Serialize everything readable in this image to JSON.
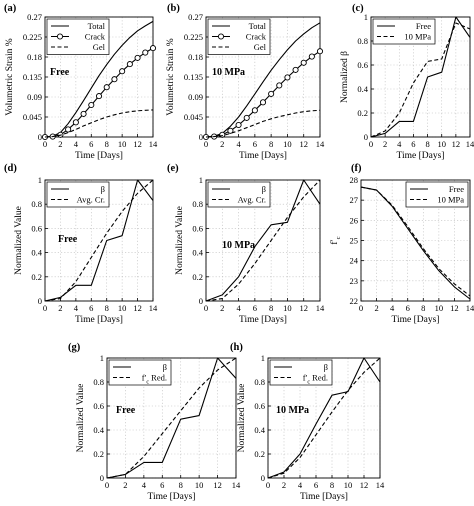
{
  "figure": {
    "background": "#ffffff",
    "line_color": "#000000"
  },
  "chart_data": [
    {
      "id": "a",
      "panel_label": "(a)",
      "type": "line",
      "annotation": "Free",
      "xlabel": "Time [Days]",
      "ylabel": "Volumetric Strain %",
      "xlim": [
        0,
        14
      ],
      "ylim": [
        0,
        0.27
      ],
      "xticks": [
        "0",
        "2",
        "4",
        "6",
        "8",
        "10",
        "12",
        "14"
      ],
      "yticks": [
        "0",
        "0.045",
        "0.09",
        "0.135",
        "0.18",
        "0.225",
        "0.27"
      ],
      "grid": true,
      "legend_position": "top-left",
      "series": [
        {
          "name": "Total",
          "style": "solid",
          "x": [
            0,
            1,
            2,
            3,
            4,
            5,
            6,
            7,
            8,
            9,
            10,
            11,
            12,
            13,
            14
          ],
          "y": [
            0,
            0.002,
            0.01,
            0.03,
            0.055,
            0.082,
            0.11,
            0.138,
            0.163,
            0.186,
            0.206,
            0.224,
            0.239,
            0.25,
            0.26
          ]
        },
        {
          "name": "Crack",
          "style": "solid-circles",
          "x": [
            0,
            1,
            2,
            3,
            4,
            5,
            6,
            7,
            8,
            9,
            10,
            11,
            12,
            13,
            14
          ],
          "y": [
            0,
            0.001,
            0.005,
            0.017,
            0.033,
            0.052,
            0.072,
            0.092,
            0.112,
            0.13,
            0.148,
            0.164,
            0.178,
            0.19,
            0.2
          ]
        },
        {
          "name": "Gel",
          "style": "dashed",
          "x": [
            0,
            1,
            2,
            3,
            4,
            5,
            6,
            7,
            8,
            9,
            10,
            11,
            12,
            13,
            14
          ],
          "y": [
            0,
            0.001,
            0.004,
            0.01,
            0.017,
            0.025,
            0.032,
            0.039,
            0.045,
            0.05,
            0.054,
            0.057,
            0.059,
            0.06,
            0.061
          ]
        }
      ]
    },
    {
      "id": "b",
      "panel_label": "(b)",
      "type": "line",
      "annotation": "10 MPa",
      "xlabel": "Time [Days]",
      "ylabel": "Volumetric Strain %",
      "xlim": [
        0,
        14
      ],
      "ylim": [
        0,
        0.27
      ],
      "xticks": [
        "0",
        "2",
        "4",
        "6",
        "8",
        "10",
        "12",
        "14"
      ],
      "yticks": [
        "0",
        "0.045",
        "0.09",
        "0.135",
        "0.18",
        "0.225",
        "0.27"
      ],
      "grid": true,
      "legend_position": "top-left",
      "series": [
        {
          "name": "Total",
          "style": "solid",
          "x": [
            0,
            1,
            2,
            3,
            4,
            5,
            6,
            7,
            8,
            9,
            10,
            11,
            12,
            13,
            14
          ],
          "y": [
            0,
            0.002,
            0.008,
            0.024,
            0.045,
            0.07,
            0.097,
            0.124,
            0.15,
            0.174,
            0.196,
            0.216,
            0.232,
            0.246,
            0.257
          ]
        },
        {
          "name": "Crack",
          "style": "solid-circles",
          "x": [
            0,
            1,
            2,
            3,
            4,
            5,
            6,
            7,
            8,
            9,
            10,
            11,
            12,
            13,
            14
          ],
          "y": [
            0,
            0.001,
            0.005,
            0.014,
            0.027,
            0.043,
            0.06,
            0.078,
            0.097,
            0.116,
            0.134,
            0.151,
            0.167,
            0.181,
            0.193
          ]
        },
        {
          "name": "Gel",
          "style": "dashed",
          "x": [
            0,
            1,
            2,
            3,
            4,
            5,
            6,
            7,
            8,
            9,
            10,
            11,
            12,
            13,
            14
          ],
          "y": [
            0,
            0.001,
            0.003,
            0.008,
            0.014,
            0.021,
            0.028,
            0.035,
            0.041,
            0.046,
            0.05,
            0.054,
            0.057,
            0.059,
            0.06
          ]
        }
      ]
    },
    {
      "id": "c",
      "panel_label": "(c)",
      "type": "line",
      "xlabel": "Time [Days]",
      "ylabel": "Normalized β",
      "xlim": [
        0,
        14
      ],
      "ylim": [
        0,
        1
      ],
      "xticks": [
        "0",
        "2",
        "4",
        "6",
        "8",
        "10",
        "12",
        "14"
      ],
      "yticks": [
        "0",
        "0.2",
        "0.4",
        "0.6",
        "0.8",
        "1"
      ],
      "grid": true,
      "legend_position": "top-left",
      "series": [
        {
          "name": "Free",
          "style": "solid",
          "x": [
            0,
            2,
            4,
            6,
            8,
            10,
            12,
            14
          ],
          "y": [
            0,
            0.03,
            0.13,
            0.13,
            0.5,
            0.54,
            1.0,
            0.83
          ]
        },
        {
          "name": "10 MPa",
          "style": "dashed",
          "x": [
            0,
            2,
            4,
            6,
            8,
            10,
            12,
            14
          ],
          "y": [
            0,
            0.05,
            0.2,
            0.45,
            0.63,
            0.65,
            0.95,
            0.9
          ]
        }
      ]
    },
    {
      "id": "d",
      "panel_label": "(d)",
      "type": "line",
      "annotation": "Free",
      "xlabel": "Time [Days]",
      "ylabel": "Normalized Value",
      "xlim": [
        0,
        14
      ],
      "ylim": [
        0,
        1
      ],
      "xticks": [
        "0",
        "2",
        "4",
        "6",
        "8",
        "10",
        "12",
        "14"
      ],
      "yticks": [
        "0",
        "0.2",
        "0.4",
        "0.6",
        "0.8",
        "1"
      ],
      "grid": true,
      "legend_position": "top-left",
      "series": [
        {
          "name": "β",
          "style": "solid",
          "x": [
            0,
            2,
            4,
            6,
            8,
            10,
            12,
            14
          ],
          "y": [
            0,
            0.03,
            0.13,
            0.13,
            0.5,
            0.54,
            1.0,
            0.83
          ]
        },
        {
          "name": "Avg. Cr.",
          "style": "dashed",
          "x": [
            0,
            2,
            4,
            6,
            8,
            10,
            12,
            14
          ],
          "y": [
            0,
            0.02,
            0.16,
            0.36,
            0.56,
            0.74,
            0.89,
            1.0
          ]
        }
      ]
    },
    {
      "id": "e",
      "panel_label": "(e)",
      "type": "line",
      "annotation": "10 MPa",
      "xlabel": "Time [Days]",
      "ylabel": "Normalized Value",
      "xlim": [
        0,
        14
      ],
      "ylim": [
        0,
        1
      ],
      "xticks": [
        "0",
        "2",
        "4",
        "6",
        "8",
        "10",
        "12",
        "14"
      ],
      "yticks": [
        "0",
        "0.2",
        "0.4",
        "0.6",
        "0.8",
        "1"
      ],
      "grid": true,
      "legend_position": "top-left",
      "series": [
        {
          "name": "β",
          "style": "solid",
          "x": [
            0,
            2,
            4,
            6,
            8,
            10,
            12,
            14
          ],
          "y": [
            0,
            0.05,
            0.2,
            0.45,
            0.63,
            0.65,
            1.0,
            0.8
          ]
        },
        {
          "name": "Avg. Cr.",
          "style": "dashed",
          "x": [
            0,
            2,
            4,
            6,
            8,
            10,
            12,
            14
          ],
          "y": [
            0,
            0.02,
            0.14,
            0.31,
            0.5,
            0.69,
            0.86,
            1.0
          ]
        }
      ]
    },
    {
      "id": "f",
      "panel_label": "(f)",
      "type": "line",
      "xlabel": "Time [Days]",
      "ylabel": "f'c",
      "xlim": [
        0,
        14
      ],
      "ylim": [
        22,
        28
      ],
      "xticks": [
        "0",
        "2",
        "4",
        "6",
        "8",
        "10",
        "12",
        "14"
      ],
      "yticks": [
        "22",
        "23",
        "24",
        "25",
        "26",
        "27",
        "28"
      ],
      "grid": true,
      "legend_position": "top-right",
      "series": [
        {
          "name": "Free",
          "style": "solid",
          "x": [
            0,
            2,
            4,
            6,
            8,
            10,
            12,
            14
          ],
          "y": [
            27.65,
            27.5,
            26.7,
            25.6,
            24.5,
            23.5,
            22.7,
            22.1
          ]
        },
        {
          "name": "10 MPa",
          "style": "dashed",
          "x": [
            0,
            2,
            4,
            6,
            8,
            10,
            12,
            14
          ],
          "y": [
            27.65,
            27.5,
            26.75,
            25.7,
            24.6,
            23.6,
            22.85,
            22.25
          ]
        }
      ]
    },
    {
      "id": "g",
      "panel_label": "(g)",
      "type": "line",
      "annotation": "Free",
      "xlabel": "Time [Days]",
      "ylabel": "Normalized Value",
      "xlim": [
        0,
        14
      ],
      "ylim": [
        0,
        1
      ],
      "xticks": [
        "0",
        "2",
        "4",
        "6",
        "8",
        "10",
        "12",
        "14"
      ],
      "yticks": [
        "0",
        "0.2",
        "0.4",
        "0.6",
        "0.8",
        "1"
      ],
      "grid": true,
      "legend_position": "top-left",
      "series": [
        {
          "name": "β",
          "style": "solid",
          "x": [
            0,
            2,
            4,
            6,
            8,
            10,
            12,
            14
          ],
          "y": [
            0,
            0.03,
            0.13,
            0.13,
            0.49,
            0.52,
            1.0,
            0.83
          ]
        },
        {
          "name": "f'c Red.",
          "style": "dashed",
          "x": [
            0,
            2,
            4,
            6,
            8,
            10,
            12,
            14
          ],
          "y": [
            0,
            0.03,
            0.18,
            0.37,
            0.56,
            0.75,
            0.9,
            1.0
          ]
        }
      ]
    },
    {
      "id": "h",
      "panel_label": "(h)",
      "type": "line",
      "annotation": "10 MPa",
      "xlabel": "Time [Days]",
      "ylabel": "Normalized Value",
      "xlim": [
        0,
        14
      ],
      "ylim": [
        0,
        1
      ],
      "xticks": [
        "0",
        "2",
        "4",
        "6",
        "8",
        "10",
        "12",
        "14"
      ],
      "yticks": [
        "0",
        "0.2",
        "0.4",
        "0.6",
        "0.8",
        "1"
      ],
      "grid": true,
      "legend_position": "top-left",
      "series": [
        {
          "name": "β",
          "style": "solid",
          "x": [
            0,
            2,
            4,
            6,
            8,
            10,
            12,
            14
          ],
          "y": [
            0,
            0.05,
            0.2,
            0.45,
            0.69,
            0.72,
            1.0,
            0.8
          ]
        },
        {
          "name": "f'c Red.",
          "style": "dashed",
          "x": [
            0,
            2,
            4,
            6,
            8,
            10,
            12,
            14
          ],
          "y": [
            0,
            0.04,
            0.17,
            0.36,
            0.55,
            0.73,
            0.88,
            1.0
          ]
        }
      ]
    }
  ]
}
